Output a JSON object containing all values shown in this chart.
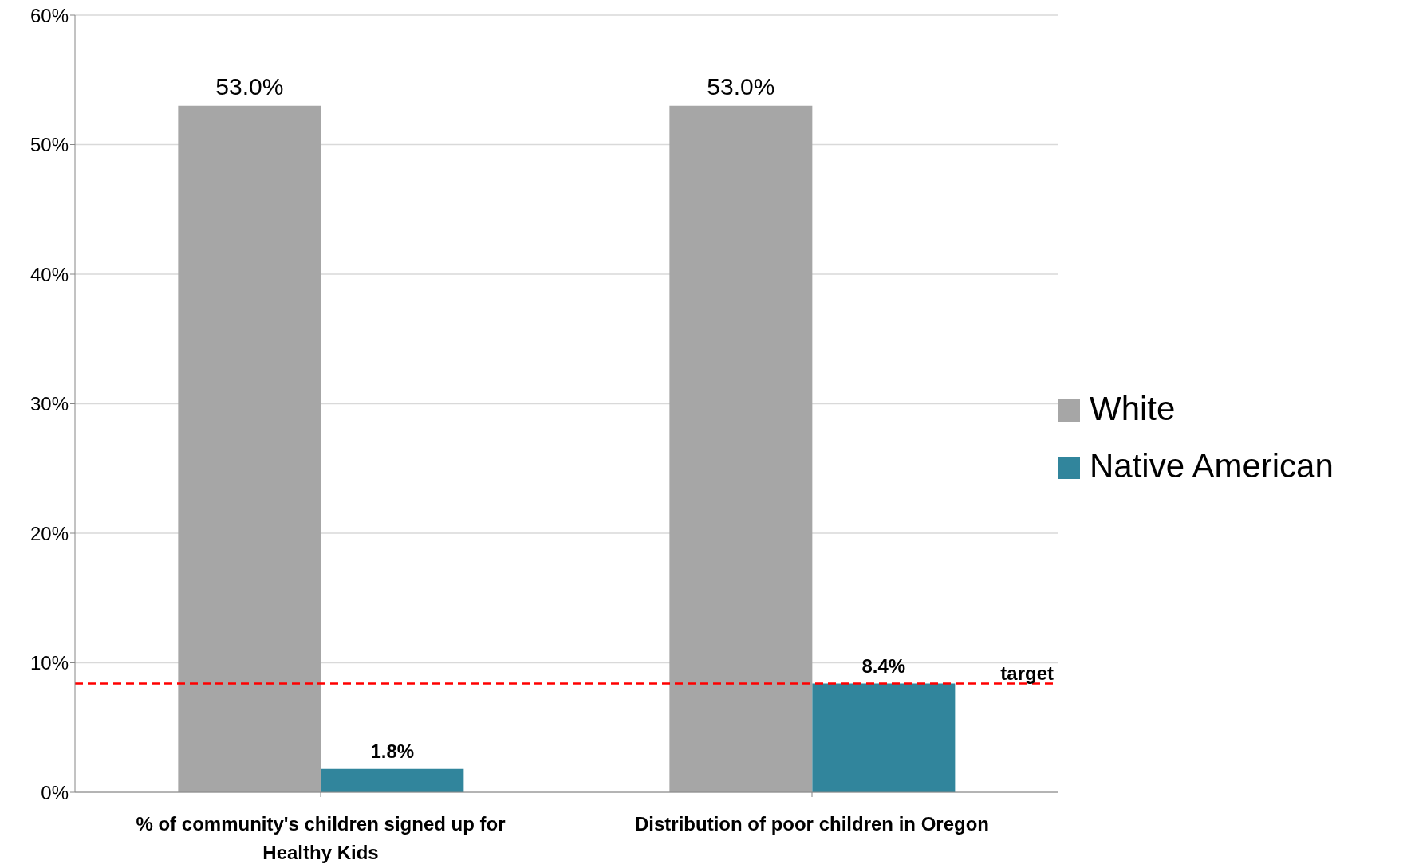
{
  "chart_data": {
    "type": "bar",
    "categories": [
      "% of community's children signed up for Healthy Kids",
      "Distribution of poor children in Oregon"
    ],
    "series": [
      {
        "name": "White",
        "color": "#a6a6a6",
        "values": [
          53.0,
          53.0
        ],
        "value_labels": [
          "53.0%",
          "53.0%"
        ]
      },
      {
        "name": "Native American",
        "color": "#31859c",
        "values": [
          1.8,
          8.4
        ],
        "value_labels": [
          "1.8%",
          "8.4%"
        ]
      }
    ],
    "ylim": [
      0,
      60
    ],
    "yticks": [
      {
        "value": 0,
        "label": "0%"
      },
      {
        "value": 10,
        "label": "10%"
      },
      {
        "value": 20,
        "label": "20%"
      },
      {
        "value": 30,
        "label": "30%"
      },
      {
        "value": 40,
        "label": "40%"
      },
      {
        "value": 50,
        "label": "50%"
      },
      {
        "value": 60,
        "label": "60%"
      }
    ],
    "grid": "y",
    "legend": "right",
    "ref_lines": [
      {
        "axis": "y",
        "value": 8.4,
        "label": "target",
        "color": "#ff0000",
        "line_style": "dashed"
      }
    ]
  }
}
